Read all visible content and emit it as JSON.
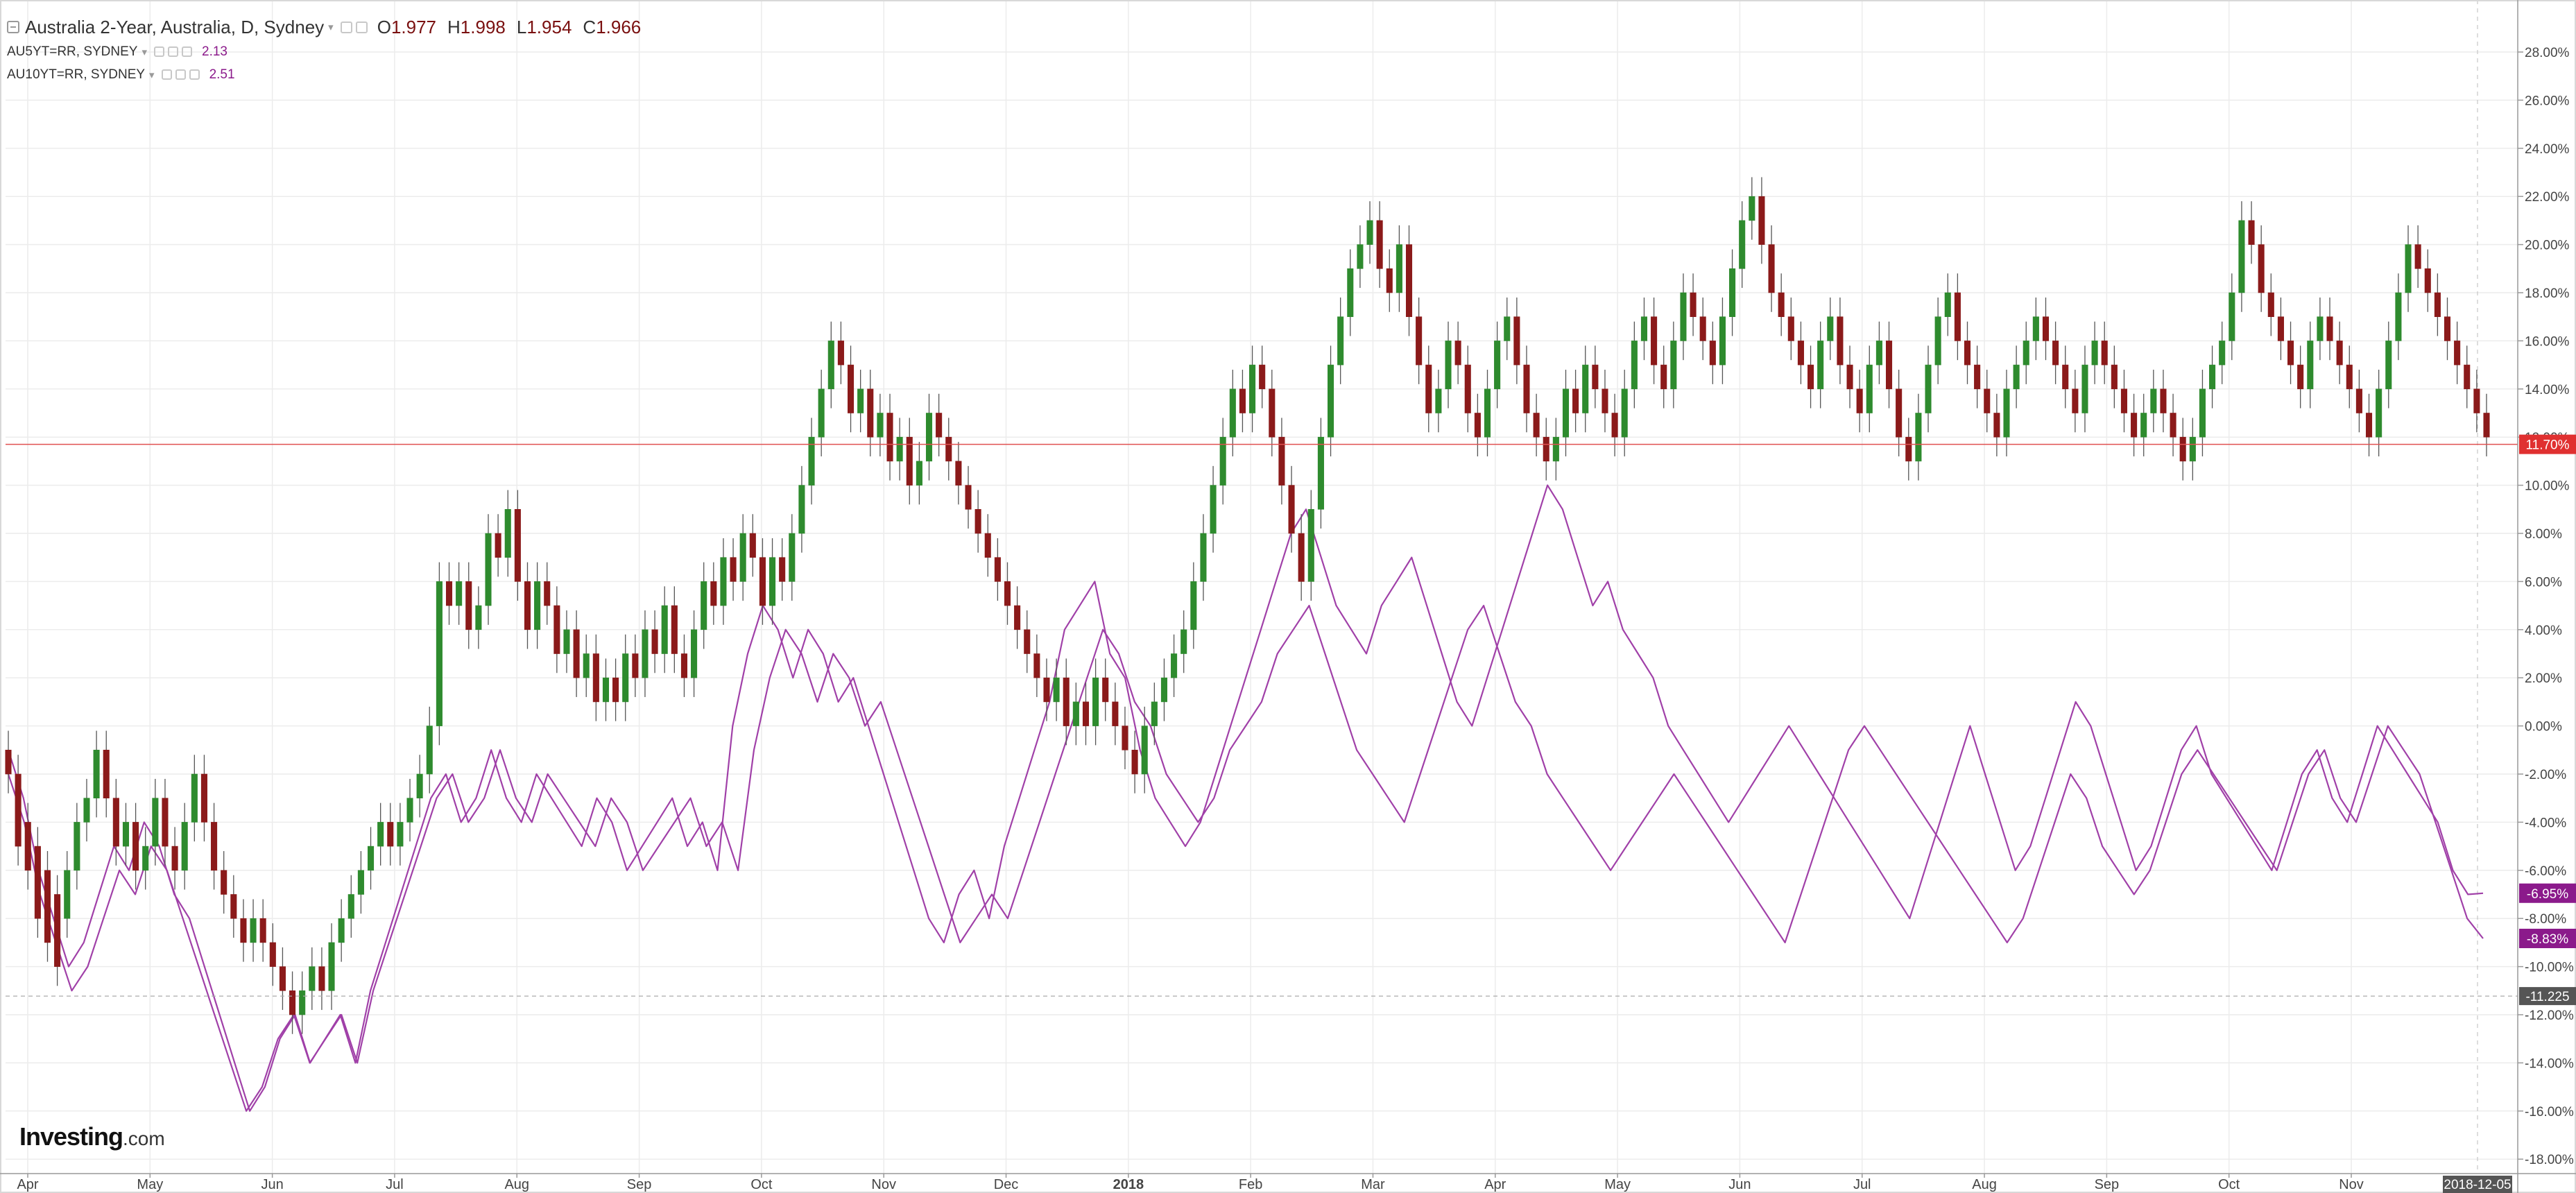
{
  "header": {
    "title": "Australia 2-Year, Australia, D, Sydney",
    "ohlc": [
      {
        "label": "O",
        "value": "1.977"
      },
      {
        "label": "H",
        "value": "1.998"
      },
      {
        "label": "L",
        "value": "1.954"
      },
      {
        "label": "C",
        "value": "1.966"
      }
    ],
    "overlays": [
      {
        "name": "AU5YT=RR, SYDNEY",
        "value": "2.13"
      },
      {
        "name": "AU10YT=RR, SYDNEY",
        "value": "2.51"
      }
    ]
  },
  "branding": {
    "logo_main": "Investing",
    "logo_suffix": ".com"
  },
  "colors": {
    "up": "#2e8b2e",
    "down": "#8b1a1a",
    "overlay": "#a040a8",
    "price_line": "#e05050",
    "grid": "#ececec",
    "axis_text": "#444444",
    "badge_red": "#e03030",
    "badge_purple": "#8b1a8b",
    "badge_dark": "#555555"
  },
  "chart_data": {
    "type": "candlestick",
    "y_axis_labels": [
      "28.00%",
      "26.00%",
      "24.00%",
      "22.00%",
      "20.00%",
      "18.00%",
      "16.00%",
      "14.00%",
      "12.00%",
      "10.00%",
      "8.00%",
      "6.00%",
      "4.00%",
      "2.00%",
      "0.00%",
      "-2.00%",
      "-4.00%",
      "-6.00%",
      "-8.00%",
      "-10.00%",
      "-12.00%",
      "-14.00%",
      "-16.00%",
      "-18.00%"
    ],
    "ylim": [
      -18,
      28
    ],
    "x_axis_labels": [
      "Apr",
      "May",
      "Jun",
      "Jul",
      "Aug",
      "Sep",
      "Oct",
      "Nov",
      "Dec",
      "2018",
      "Feb",
      "Mar",
      "Apr",
      "May",
      "Jun",
      "Jul",
      "Aug",
      "Sep",
      "Oct",
      "Nov"
    ],
    "x_axis_bold_label": "2018",
    "current_date_label": "2018-12-05",
    "price_line": {
      "value": 11.7,
      "label": "11.70%"
    },
    "reference_line": {
      "value": -11.225,
      "label": "-11.225"
    },
    "overlay_badges": [
      {
        "value": -6.95,
        "label": "-6.95%"
      },
      {
        "value": -8.83,
        "label": "-8.83%"
      }
    ],
    "candles": [
      [
        -1,
        -2
      ],
      [
        -2,
        -5
      ],
      [
        -4,
        -6
      ],
      [
        -5,
        -8
      ],
      [
        -6,
        -9
      ],
      [
        -7,
        -10
      ],
      [
        -8,
        -6
      ],
      [
        -6,
        -4
      ],
      [
        -4,
        -3
      ],
      [
        -3,
        -1
      ],
      [
        -1,
        -3
      ],
      [
        -3,
        -5
      ],
      [
        -5,
        -4
      ],
      [
        -4,
        -6
      ],
      [
        -6,
        -5
      ],
      [
        -5,
        -3
      ],
      [
        -3,
        -5
      ],
      [
        -5,
        -6
      ],
      [
        -6,
        -4
      ],
      [
        -4,
        -2
      ],
      [
        -2,
        -4
      ],
      [
        -4,
        -6
      ],
      [
        -6,
        -7
      ],
      [
        -7,
        -8
      ],
      [
        -8,
        -9
      ],
      [
        -9,
        -8
      ],
      [
        -8,
        -9
      ],
      [
        -9,
        -10
      ],
      [
        -10,
        -11
      ],
      [
        -11,
        -12
      ],
      [
        -12,
        -11
      ],
      [
        -11,
        -10
      ],
      [
        -10,
        -11
      ],
      [
        -11,
        -9
      ],
      [
        -9,
        -8
      ],
      [
        -8,
        -7
      ],
      [
        -7,
        -6
      ],
      [
        -6,
        -5
      ],
      [
        -5,
        -4
      ],
      [
        -4,
        -5
      ],
      [
        -5,
        -4
      ],
      [
        -4,
        -3
      ],
      [
        -3,
        -2
      ],
      [
        -2,
        0
      ],
      [
        0,
        6
      ],
      [
        6,
        5
      ],
      [
        5,
        6
      ],
      [
        6,
        4
      ],
      [
        4,
        5
      ],
      [
        5,
        8
      ],
      [
        8,
        7
      ],
      [
        7,
        9
      ],
      [
        9,
        6
      ],
      [
        6,
        4
      ],
      [
        4,
        6
      ],
      [
        6,
        5
      ],
      [
        5,
        3
      ],
      [
        3,
        4
      ],
      [
        4,
        2
      ],
      [
        2,
        3
      ],
      [
        3,
        1
      ],
      [
        1,
        2
      ],
      [
        2,
        1
      ],
      [
        1,
        3
      ],
      [
        3,
        2
      ],
      [
        2,
        4
      ],
      [
        4,
        3
      ],
      [
        3,
        5
      ],
      [
        5,
        3
      ],
      [
        3,
        2
      ],
      [
        2,
        4
      ],
      [
        4,
        6
      ],
      [
        6,
        5
      ],
      [
        5,
        7
      ],
      [
        7,
        6
      ],
      [
        6,
        8
      ],
      [
        8,
        7
      ],
      [
        7,
        5
      ],
      [
        5,
        7
      ],
      [
        7,
        6
      ],
      [
        6,
        8
      ],
      [
        8,
        10
      ],
      [
        10,
        12
      ],
      [
        12,
        14
      ],
      [
        14,
        16
      ],
      [
        16,
        15
      ],
      [
        15,
        13
      ],
      [
        13,
        14
      ],
      [
        14,
        12
      ],
      [
        12,
        13
      ],
      [
        13,
        11
      ],
      [
        11,
        12
      ],
      [
        12,
        10
      ],
      [
        10,
        11
      ],
      [
        11,
        13
      ],
      [
        13,
        12
      ],
      [
        12,
        11
      ],
      [
        11,
        10
      ],
      [
        10,
        9
      ],
      [
        9,
        8
      ],
      [
        8,
        7
      ],
      [
        7,
        6
      ],
      [
        6,
        5
      ],
      [
        5,
        4
      ],
      [
        4,
        3
      ],
      [
        3,
        2
      ],
      [
        2,
        1
      ],
      [
        1,
        2
      ],
      [
        2,
        0
      ],
      [
        0,
        1
      ],
      [
        1,
        0
      ],
      [
        0,
        2
      ],
      [
        2,
        1
      ],
      [
        1,
        0
      ],
      [
        0,
        -1
      ],
      [
        -1,
        -2
      ],
      [
        -2,
        0
      ],
      [
        0,
        1
      ],
      [
        1,
        2
      ],
      [
        2,
        3
      ],
      [
        3,
        4
      ],
      [
        4,
        6
      ],
      [
        6,
        8
      ],
      [
        8,
        10
      ],
      [
        10,
        12
      ],
      [
        12,
        14
      ],
      [
        14,
        13
      ],
      [
        13,
        15
      ],
      [
        15,
        14
      ],
      [
        14,
        12
      ],
      [
        12,
        10
      ],
      [
        10,
        8
      ],
      [
        8,
        6
      ],
      [
        6,
        9
      ],
      [
        9,
        12
      ],
      [
        12,
        15
      ],
      [
        15,
        17
      ],
      [
        17,
        19
      ],
      [
        19,
        20
      ],
      [
        20,
        21
      ],
      [
        21,
        19
      ],
      [
        19,
        18
      ],
      [
        18,
        20
      ],
      [
        20,
        17
      ],
      [
        17,
        15
      ],
      [
        15,
        13
      ],
      [
        13,
        14
      ],
      [
        14,
        16
      ],
      [
        16,
        15
      ],
      [
        15,
        13
      ],
      [
        13,
        12
      ],
      [
        12,
        14
      ],
      [
        14,
        16
      ],
      [
        16,
        17
      ],
      [
        17,
        15
      ],
      [
        15,
        13
      ],
      [
        13,
        12
      ],
      [
        12,
        11
      ],
      [
        11,
        12
      ],
      [
        12,
        14
      ],
      [
        14,
        13
      ],
      [
        13,
        15
      ],
      [
        15,
        14
      ],
      [
        14,
        13
      ],
      [
        13,
        12
      ],
      [
        12,
        14
      ],
      [
        14,
        16
      ],
      [
        16,
        17
      ],
      [
        17,
        15
      ],
      [
        15,
        14
      ],
      [
        14,
        16
      ],
      [
        16,
        18
      ],
      [
        18,
        17
      ],
      [
        17,
        16
      ],
      [
        16,
        15
      ],
      [
        15,
        17
      ],
      [
        17,
        19
      ],
      [
        19,
        21
      ],
      [
        21,
        22
      ],
      [
        22,
        20
      ],
      [
        20,
        18
      ],
      [
        18,
        17
      ],
      [
        17,
        16
      ],
      [
        16,
        15
      ],
      [
        15,
        14
      ],
      [
        14,
        16
      ],
      [
        16,
        17
      ],
      [
        17,
        15
      ],
      [
        15,
        14
      ],
      [
        14,
        13
      ],
      [
        13,
        15
      ],
      [
        15,
        16
      ],
      [
        16,
        14
      ],
      [
        14,
        12
      ],
      [
        12,
        11
      ],
      [
        11,
        13
      ],
      [
        13,
        15
      ],
      [
        15,
        17
      ],
      [
        17,
        18
      ],
      [
        18,
        16
      ],
      [
        16,
        15
      ],
      [
        15,
        14
      ],
      [
        14,
        13
      ],
      [
        13,
        12
      ],
      [
        12,
        14
      ],
      [
        14,
        15
      ],
      [
        15,
        16
      ],
      [
        16,
        17
      ],
      [
        17,
        16
      ],
      [
        16,
        15
      ],
      [
        15,
        14
      ],
      [
        14,
        13
      ],
      [
        13,
        15
      ],
      [
        15,
        16
      ],
      [
        16,
        15
      ],
      [
        15,
        14
      ],
      [
        14,
        13
      ],
      [
        13,
        12
      ],
      [
        12,
        13
      ],
      [
        13,
        14
      ],
      [
        14,
        13
      ],
      [
        13,
        12
      ],
      [
        12,
        11
      ],
      [
        11,
        12
      ],
      [
        12,
        14
      ],
      [
        14,
        15
      ],
      [
        15,
        16
      ],
      [
        16,
        18
      ],
      [
        18,
        21
      ],
      [
        21,
        20
      ],
      [
        20,
        18
      ],
      [
        18,
        17
      ],
      [
        17,
        16
      ],
      [
        16,
        15
      ],
      [
        15,
        14
      ],
      [
        14,
        16
      ],
      [
        16,
        17
      ],
      [
        17,
        16
      ],
      [
        16,
        15
      ],
      [
        15,
        14
      ],
      [
        14,
        13
      ],
      [
        13,
        12
      ],
      [
        12,
        14
      ],
      [
        14,
        16
      ],
      [
        16,
        18
      ],
      [
        18,
        20
      ],
      [
        20,
        19
      ],
      [
        19,
        18
      ],
      [
        18,
        17
      ],
      [
        17,
        16
      ],
      [
        16,
        15
      ],
      [
        15,
        14
      ],
      [
        14,
        13
      ],
      [
        13,
        12
      ]
    ],
    "overlay_series": [
      {
        "values": [
          -1,
          -3,
          -6,
          -8,
          -10,
          -9,
          -7,
          -5,
          -6,
          -4,
          -5,
          -7,
          -8,
          -10,
          -12,
          -14,
          -16,
          -15,
          -13,
          -12,
          -14,
          -13,
          -12,
          -14,
          -11,
          -9,
          -7,
          -5,
          -3,
          -2,
          -4,
          -3,
          -1,
          -3,
          -4,
          -2,
          -3,
          -4,
          -5,
          -3,
          -4,
          -6,
          -5,
          -4,
          -3,
          -5,
          -4,
          -6,
          0,
          3,
          5,
          4,
          2,
          4,
          3,
          1,
          2,
          0,
          -2,
          -4,
          -6,
          -8,
          -9,
          -7,
          -6,
          -8,
          -5,
          -3,
          -1,
          1,
          4,
          5,
          6,
          3,
          2,
          -1,
          -3,
          -4,
          -5,
          -4,
          -2,
          0,
          2,
          4,
          6,
          8,
          9,
          7,
          5,
          4,
          3,
          5,
          6,
          7,
          5,
          3,
          1,
          0,
          2,
          4,
          6,
          8,
          10,
          9,
          7,
          5,
          6,
          4,
          3,
          2,
          0,
          -1,
          -2,
          -3,
          -4,
          -3,
          -2,
          -1,
          0,
          -1,
          -2,
          -3,
          -4,
          -5,
          -6,
          -7,
          -8,
          -6,
          -4,
          -2,
          0,
          -2,
          -4,
          -6,
          -5,
          -3,
          -1,
          1,
          0,
          -2,
          -4,
          -6,
          -5,
          -3,
          -1,
          0,
          -2,
          -3,
          -4,
          -5,
          -6,
          -4,
          -2,
          -1,
          -3,
          -4,
          -2,
          0,
          -1,
          -2,
          -3,
          -4,
          -6,
          -7,
          -6.95
        ]
      },
      {
        "values": [
          -2,
          -4,
          -7,
          -9,
          -11,
          -10,
          -8,
          -6,
          -7,
          -5,
          -6,
          -8,
          -10,
          -12,
          -14,
          -16,
          -15,
          -13,
          -12,
          -14,
          -13,
          -12,
          -14,
          -11,
          -9,
          -7,
          -5,
          -3,
          -2,
          -4,
          -3,
          -1,
          -3,
          -4,
          -2,
          -3,
          -4,
          -5,
          -3,
          -4,
          -6,
          -5,
          -4,
          -3,
          -5,
          -4,
          -6,
          -1,
          2,
          4,
          3,
          1,
          3,
          2,
          0,
          1,
          -1,
          -3,
          -5,
          -7,
          -9,
          -8,
          -7,
          -8,
          -6,
          -4,
          -2,
          0,
          2,
          4,
          3,
          1,
          0,
          -2,
          -3,
          -4,
          -3,
          -1,
          0,
          1,
          3,
          4,
          5,
          3,
          1,
          -1,
          -2,
          -3,
          -4,
          -2,
          0,
          2,
          4,
          5,
          3,
          1,
          0,
          -2,
          -3,
          -4,
          -5,
          -6,
          -5,
          -4,
          -3,
          -2,
          -3,
          -4,
          -5,
          -6,
          -7,
          -8,
          -9,
          -7,
          -5,
          -3,
          -1,
          0,
          -1,
          -2,
          -3,
          -4,
          -5,
          -6,
          -7,
          -8,
          -9,
          -8,
          -6,
          -4,
          -2,
          -3,
          -5,
          -6,
          -7,
          -6,
          -4,
          -2,
          -1,
          -2,
          -3,
          -4,
          -5,
          -6,
          -4,
          -2,
          -1,
          -3,
          -4,
          -2,
          0,
          -1,
          -2,
          -4,
          -6,
          -8,
          -8.83
        ]
      }
    ],
    "grid": true
  }
}
